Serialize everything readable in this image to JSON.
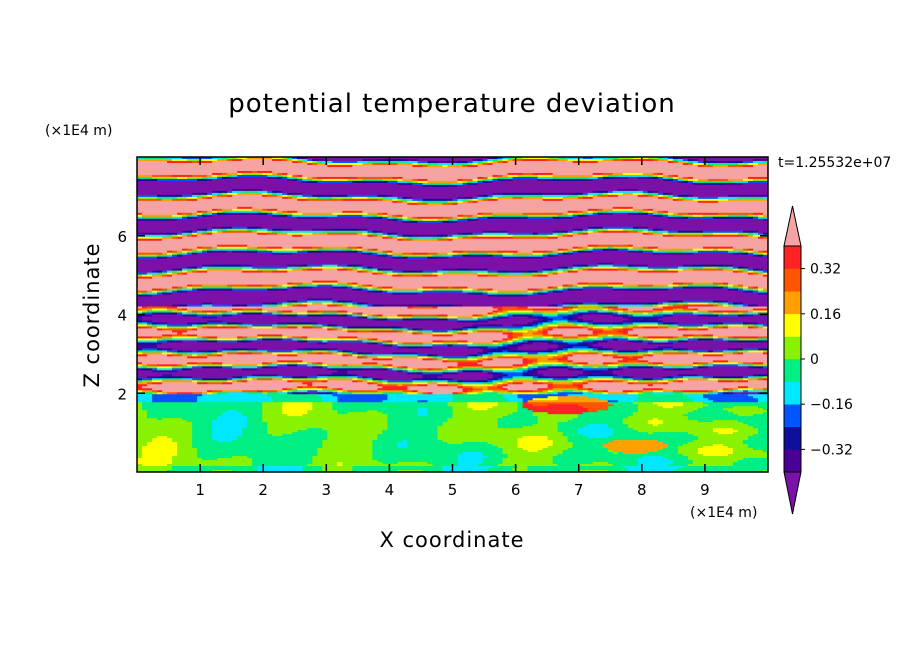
{
  "chart_data": {
    "type": "heatmap",
    "title": "potential temperature deviation",
    "xlabel": "X coordinate",
    "ylabel": "Z coordinate",
    "x_unit": "(×1E4 m)",
    "y_unit": "(×1E4 m)",
    "time_label": "t=1.25532e+07",
    "xlim": [
      0,
      10
    ],
    "ylim": [
      0,
      8
    ],
    "x_ticks": [
      "1",
      "2",
      "3",
      "4",
      "5",
      "6",
      "7",
      "8",
      "9"
    ],
    "y_ticks": [
      "2",
      "4",
      "6"
    ],
    "colorbar": {
      "labels": [
        "0.32",
        "0.16",
        "0",
        "−0.16",
        "−0.32"
      ],
      "label_values": [
        0.32,
        0.16,
        0,
        -0.16,
        -0.32
      ],
      "levels": [
        -0.4,
        -0.32,
        -0.24,
        -0.16,
        -0.08,
        0,
        0.08,
        0.16,
        0.24,
        0.32,
        0.4
      ],
      "colors": [
        "#4b0095",
        "#0f0f9e",
        "#0055ff",
        "#00e8ff",
        "#00ee83",
        "#88f200",
        "#ffff00",
        "#ffa000",
        "#ff5500",
        "#ff2222"
      ],
      "under_color": "#7a11a8",
      "over_color": "#f5a3a3"
    },
    "regions": [
      {
        "name": "lower-layer",
        "z_range": [
          0,
          2
        ],
        "dominant": "green / spring-green mix (about 0)"
      },
      {
        "name": "transition-layer",
        "z_range": [
          2,
          4.2
        ],
        "dominant": "mixed, full range of colours"
      },
      {
        "name": "upper-layer",
        "z_range": [
          4.2,
          8
        ],
        "dominant": "alternating purple (below -0.4) and pink (above 0.4) bands"
      }
    ]
  }
}
